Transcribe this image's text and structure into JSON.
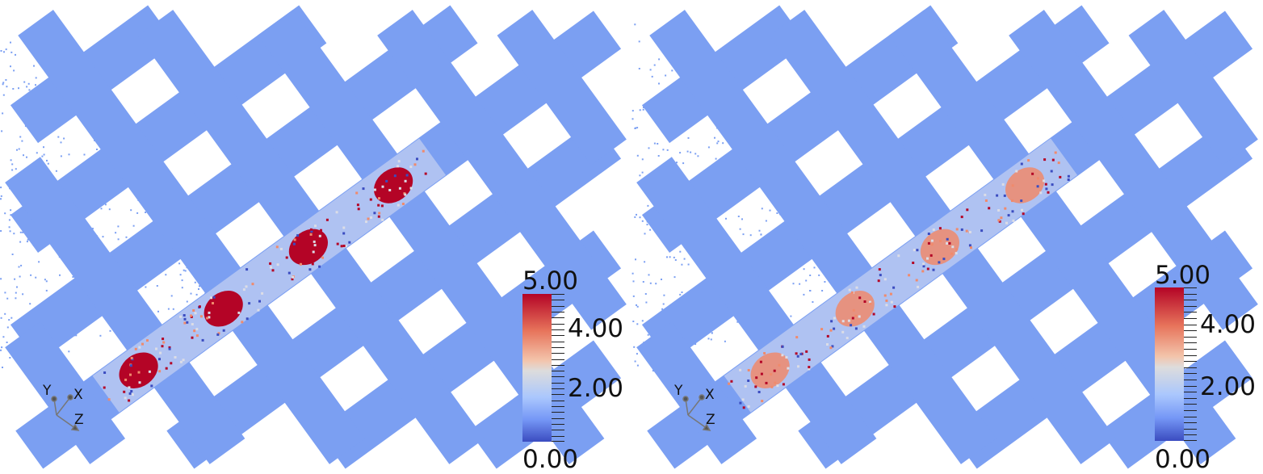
{
  "panels": [
    {
      "id": "left",
      "colorbar": {
        "max_label": "5.00",
        "label_4": "4.00",
        "label_2": "2.00",
        "min_label": "0.00",
        "range": [
          0,
          5
        ],
        "colormap": "Cool to Warm"
      },
      "axes": {
        "x": "X",
        "y": "Y",
        "z": "Z"
      },
      "hotspot_intensity": "high"
    },
    {
      "id": "right",
      "colorbar": {
        "max_label": "5.00",
        "label_4": "4.00",
        "label_2": "2.00",
        "min_label": "0.00",
        "range": [
          0,
          5
        ],
        "colormap": "Cool to Warm"
      },
      "axes": {
        "x": "X",
        "y": "Y",
        "z": "Z"
      },
      "hotspot_intensity": "moderate"
    }
  ],
  "colors": {
    "base": "#7b9ff2",
    "hot": "#b40426",
    "warm": "#f08a6c",
    "pale": "#dcdde6",
    "dark_blue": "#3b4cc0"
  }
}
